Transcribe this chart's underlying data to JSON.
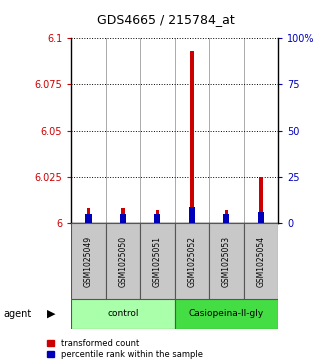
{
  "title": "GDS4665 / 215784_at",
  "samples": [
    "GSM1025049",
    "GSM1025050",
    "GSM1025051",
    "GSM1025052",
    "GSM1025053",
    "GSM1025054"
  ],
  "red_values": [
    6.008,
    6.008,
    6.007,
    6.093,
    6.007,
    6.025
  ],
  "blue_values": [
    6.005,
    6.005,
    6.005,
    6.009,
    6.005,
    6.006
  ],
  "ylim_left": [
    6.0,
    6.1
  ],
  "yticks_left": [
    6.0,
    6.025,
    6.05,
    6.075,
    6.1
  ],
  "ytick_left_labels": [
    "6",
    "6.025",
    "6.05",
    "6.075",
    "6.1"
  ],
  "yticks_right": [
    0,
    25,
    50,
    75,
    100
  ],
  "ytick_right_labels": [
    "0",
    "25",
    "50",
    "75",
    "100%"
  ],
  "ylabel_left_color": "#CC0000",
  "ylabel_right_color": "#0000BB",
  "legend_red": "transformed count",
  "legend_blue": "percentile rank within the sample",
  "agent_label": "agent",
  "bar_bg_color": "#C8C8C8",
  "control_color": "#AAFFAA",
  "treat_color": "#44DD44",
  "red_bar_width": 0.1,
  "blue_bar_width": 0.18,
  "group_spans": [
    [
      0,
      2,
      "control"
    ],
    [
      3,
      5,
      "Casiopeina-II-gly"
    ]
  ]
}
